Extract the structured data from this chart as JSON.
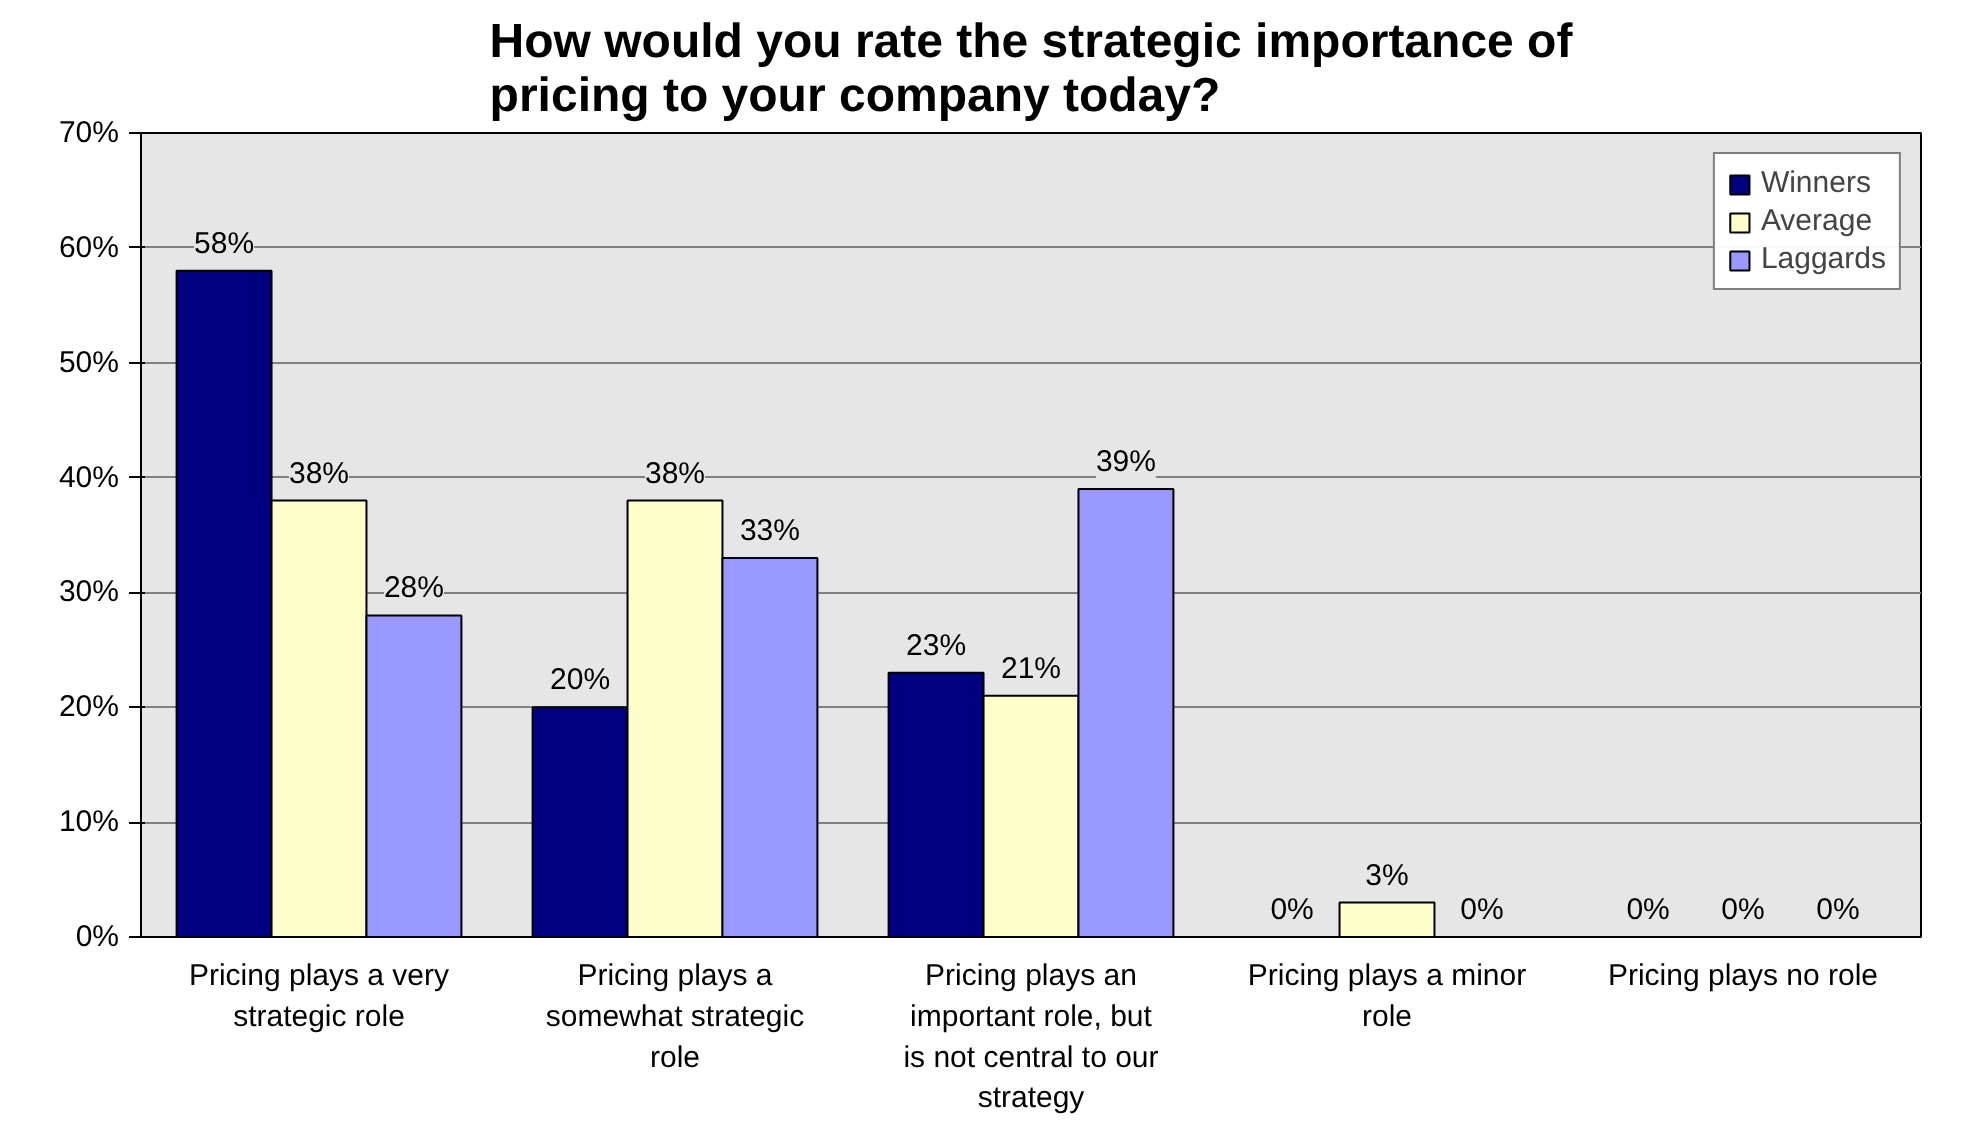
{
  "chart_data": {
    "type": "bar",
    "title": "How would you rate the strategic importance of pricing to your company today?",
    "categories": [
      "Pricing plays a very strategic role",
      "Pricing plays a somewhat strategic role",
      "Pricing plays an important role, but is not central to our strategy",
      "Pricing plays a minor role",
      "Pricing plays no role"
    ],
    "series": [
      {
        "name": "Winners",
        "color": "#000080",
        "values": [
          58,
          20,
          23,
          0,
          0
        ],
        "value_labels": [
          "58%",
          "20%",
          "23%",
          "0%",
          "0%"
        ]
      },
      {
        "name": "Average",
        "color": "#ffffcc",
        "values": [
          38,
          38,
          21,
          3,
          0
        ],
        "value_labels": [
          "38%",
          "38%",
          "21%",
          "3%",
          "0%"
        ]
      },
      {
        "name": "Laggards",
        "color": "#9999ff",
        "values": [
          28,
          33,
          39,
          0,
          0
        ],
        "value_labels": [
          "28%",
          "33%",
          "39%",
          "0%",
          "0%"
        ]
      }
    ],
    "ylim": [
      0,
      70
    ],
    "yticks": [
      {
        "value": 0,
        "label": "0%"
      },
      {
        "value": 10,
        "label": "10%"
      },
      {
        "value": 20,
        "label": "20%"
      },
      {
        "value": 30,
        "label": "30%"
      },
      {
        "value": 40,
        "label": "40%"
      },
      {
        "value": 50,
        "label": "50%"
      },
      {
        "value": 60,
        "label": "60%"
      },
      {
        "value": 70,
        "label": "70%"
      }
    ],
    "grid": "y",
    "legend": "top right"
  }
}
